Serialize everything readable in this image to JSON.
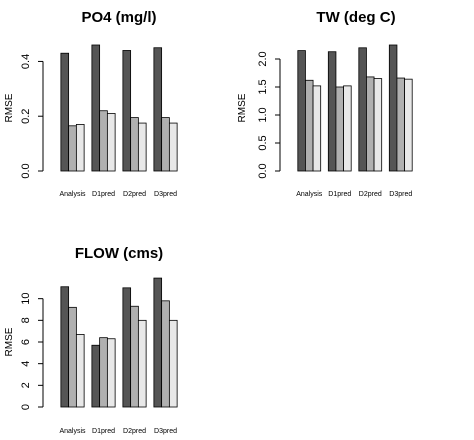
{
  "chart_data": [
    {
      "type": "bar",
      "title": "PO4 (mg/l)",
      "xlabel": "",
      "ylabel": "RMSE",
      "categories": [
        "Analysis",
        "D1pred",
        "D2pred",
        "D3pred"
      ],
      "series": [
        {
          "values": [
            0.43,
            0.46,
            0.44,
            0.45
          ]
        },
        {
          "values": [
            0.165,
            0.22,
            0.195,
            0.195
          ]
        },
        {
          "values": [
            0.17,
            0.21,
            0.175,
            0.175
          ]
        }
      ],
      "ylim": [
        0,
        0.46
      ],
      "yticks": [
        0.0,
        0.2,
        0.4
      ],
      "ytick_labels": [
        "0.0",
        "0.2",
        "0.4"
      ],
      "colors": [
        "#555555",
        "#b0b0b0",
        "#e8e8e8"
      ]
    },
    {
      "type": "bar",
      "title": "TW (deg C)",
      "xlabel": "",
      "ylabel": "RMSE",
      "categories": [
        "Analysis",
        "D1pred",
        "D2pred",
        "D3pred"
      ],
      "series": [
        {
          "values": [
            2.15,
            2.13,
            2.2,
            2.25
          ]
        },
        {
          "values": [
            1.62,
            1.5,
            1.68,
            1.66
          ]
        },
        {
          "values": [
            1.52,
            1.52,
            1.65,
            1.64
          ]
        }
      ],
      "ylim": [
        0,
        2.25
      ],
      "yticks": [
        0.0,
        0.5,
        1.0,
        1.5,
        2.0
      ],
      "ytick_labels": [
        "0.0",
        "0.5",
        "1.0",
        "1.5",
        "2.0"
      ],
      "colors": [
        "#555555",
        "#b0b0b0",
        "#e8e8e8"
      ]
    },
    {
      "type": "bar",
      "title": "FLOW (cms)",
      "xlabel": "",
      "ylabel": "RMSE",
      "categories": [
        "Analysis",
        "D1pred",
        "D2pred",
        "D3pred"
      ],
      "series": [
        {
          "values": [
            11.1,
            5.7,
            11.0,
            11.9
          ]
        },
        {
          "values": [
            9.2,
            6.4,
            9.3,
            9.8
          ]
        },
        {
          "values": [
            6.7,
            6.3,
            8.0,
            8.0
          ]
        }
      ],
      "ylim": [
        0,
        12
      ],
      "yticks": [
        0,
        2,
        4,
        6,
        8,
        10
      ],
      "ytick_labels": [
        "0",
        "2",
        "4",
        "6",
        "8",
        "10"
      ],
      "colors": [
        "#555555",
        "#b0b0b0",
        "#e8e8e8"
      ]
    }
  ]
}
